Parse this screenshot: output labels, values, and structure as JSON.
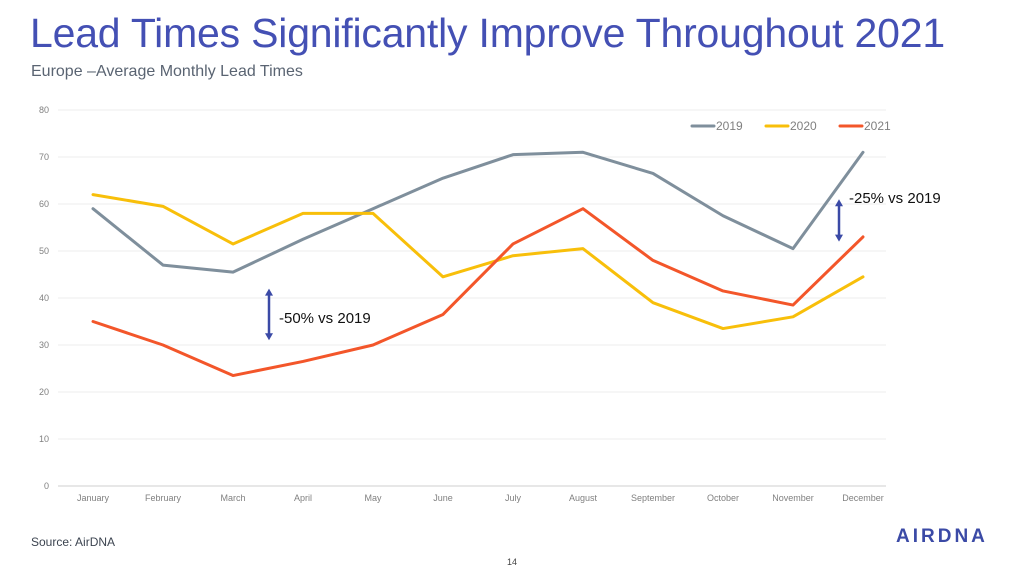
{
  "page": {
    "title": "Lead Times Significantly Improve Throughout 2021",
    "subtitle": "Europe –Average Monthly Lead Times",
    "source": "Source: AirDNA",
    "page_number": "14",
    "logo_text": "AIRDNA"
  },
  "colors": {
    "title": "#4450b4",
    "annotation_arrow": "#3b4aa6"
  },
  "chart_data": {
    "type": "line",
    "categories": [
      "January",
      "February",
      "March",
      "April",
      "May",
      "June",
      "July",
      "August",
      "September",
      "October",
      "November",
      "December"
    ],
    "series": [
      {
        "name": "2019",
        "color": "#7f8f9c",
        "values": [
          59,
          47,
          45.5,
          52.5,
          59,
          65.5,
          70.5,
          71,
          66.5,
          57.5,
          50.5,
          71
        ]
      },
      {
        "name": "2020",
        "color": "#f8bf0a",
        "values": [
          62,
          59.5,
          51.5,
          58,
          58,
          44.5,
          49,
          50.5,
          39,
          33.5,
          36,
          44.5
        ]
      },
      {
        "name": "2021",
        "color": "#f3562a",
        "values": [
          35,
          30,
          23.5,
          26.5,
          30,
          36.5,
          51.5,
          59,
          48,
          41.5,
          38.5,
          53
        ]
      }
    ],
    "ylim": [
      0,
      80
    ],
    "yticks": [
      0,
      10,
      20,
      30,
      40,
      50,
      60,
      70,
      80
    ],
    "grid": true,
    "legend_position": "top-right",
    "annotations": [
      {
        "text": "-50% vs 2019",
        "category": "April",
        "y_from": 31,
        "y_to": 42
      },
      {
        "text": "-25% vs 2019",
        "category": "December",
        "y_from": 52,
        "y_to": 61
      }
    ]
  }
}
